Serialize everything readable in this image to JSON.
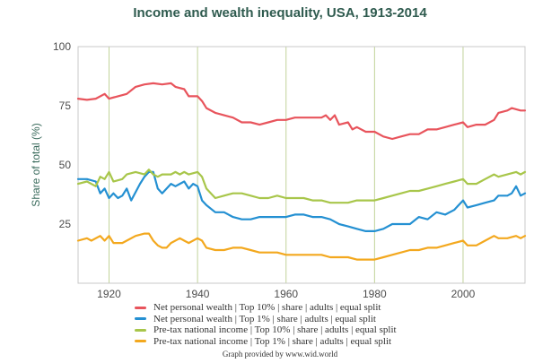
{
  "chart_data": {
    "type": "line",
    "title": "Income and wealth inequality, USA, 1913-2014",
    "xlabel": "",
    "ylabel": "Share of total (%)",
    "xlim": [
      1913,
      2014
    ],
    "ylim": [
      0,
      100
    ],
    "yticks": [
      25,
      50,
      75,
      100
    ],
    "xticks": [
      1920,
      1940,
      1960,
      1980,
      2000
    ],
    "grid": "vertical",
    "legend": "bottom",
    "series": [
      {
        "name": "Net personal wealth | Top 10% | share | adults | equal split",
        "color": "#e8545c",
        "points": [
          [
            1913,
            78
          ],
          [
            1915,
            77.5
          ],
          [
            1917,
            78
          ],
          [
            1919,
            80
          ],
          [
            1920,
            78
          ],
          [
            1922,
            79
          ],
          [
            1924,
            80
          ],
          [
            1926,
            83
          ],
          [
            1928,
            84
          ],
          [
            1930,
            84.5
          ],
          [
            1932,
            84
          ],
          [
            1934,
            84.5
          ],
          [
            1935,
            83
          ],
          [
            1937,
            82
          ],
          [
            1938,
            79
          ],
          [
            1940,
            79
          ],
          [
            1941,
            77
          ],
          [
            1942,
            74
          ],
          [
            1944,
            72
          ],
          [
            1946,
            71
          ],
          [
            1948,
            70
          ],
          [
            1950,
            68
          ],
          [
            1952,
            68
          ],
          [
            1954,
            67
          ],
          [
            1956,
            68
          ],
          [
            1958,
            69
          ],
          [
            1960,
            69
          ],
          [
            1962,
            70
          ],
          [
            1964,
            70
          ],
          [
            1966,
            70
          ],
          [
            1968,
            70
          ],
          [
            1969,
            71
          ],
          [
            1970,
            69
          ],
          [
            1971,
            71
          ],
          [
            1972,
            67
          ],
          [
            1974,
            68
          ],
          [
            1975,
            65
          ],
          [
            1976,
            66
          ],
          [
            1978,
            64
          ],
          [
            1980,
            64
          ],
          [
            1982,
            62
          ],
          [
            1984,
            61
          ],
          [
            1986,
            62
          ],
          [
            1988,
            63
          ],
          [
            1990,
            63
          ],
          [
            1992,
            65
          ],
          [
            1994,
            65
          ],
          [
            1996,
            66
          ],
          [
            1998,
            67
          ],
          [
            2000,
            68
          ],
          [
            2001,
            66
          ],
          [
            2003,
            67
          ],
          [
            2005,
            67
          ],
          [
            2007,
            69
          ],
          [
            2008,
            72
          ],
          [
            2010,
            73
          ],
          [
            2011,
            74
          ],
          [
            2013,
            73
          ],
          [
            2014,
            73
          ]
        ]
      },
      {
        "name": "Net personal wealth | Top 1% | share | adults | equal split",
        "color": "#2490d2",
        "points": [
          [
            1913,
            44
          ],
          [
            1915,
            44
          ],
          [
            1917,
            43
          ],
          [
            1918,
            38
          ],
          [
            1919,
            40
          ],
          [
            1920,
            36
          ],
          [
            1921,
            38
          ],
          [
            1922,
            36
          ],
          [
            1923,
            37
          ],
          [
            1924,
            40
          ],
          [
            1925,
            35
          ],
          [
            1927,
            42
          ],
          [
            1928,
            45
          ],
          [
            1929,
            47
          ],
          [
            1930,
            47
          ],
          [
            1931,
            40
          ],
          [
            1932,
            38
          ],
          [
            1934,
            42
          ],
          [
            1935,
            41
          ],
          [
            1936,
            42
          ],
          [
            1937,
            43
          ],
          [
            1938,
            40
          ],
          [
            1939,
            42
          ],
          [
            1940,
            41
          ],
          [
            1941,
            35
          ],
          [
            1942,
            33
          ],
          [
            1944,
            30
          ],
          [
            1946,
            30
          ],
          [
            1948,
            28
          ],
          [
            1950,
            27
          ],
          [
            1952,
            27
          ],
          [
            1954,
            28
          ],
          [
            1956,
            28
          ],
          [
            1958,
            28
          ],
          [
            1960,
            28
          ],
          [
            1962,
            29
          ],
          [
            1964,
            29
          ],
          [
            1966,
            28
          ],
          [
            1968,
            28
          ],
          [
            1970,
            27
          ],
          [
            1972,
            25
          ],
          [
            1974,
            24
          ],
          [
            1976,
            23
          ],
          [
            1978,
            22
          ],
          [
            1980,
            22
          ],
          [
            1982,
            23
          ],
          [
            1984,
            25
          ],
          [
            1986,
            25
          ],
          [
            1988,
            25
          ],
          [
            1990,
            28
          ],
          [
            1992,
            27
          ],
          [
            1994,
            30
          ],
          [
            1996,
            29
          ],
          [
            1998,
            31
          ],
          [
            2000,
            35
          ],
          [
            2001,
            32
          ],
          [
            2003,
            33
          ],
          [
            2005,
            34
          ],
          [
            2007,
            35
          ],
          [
            2008,
            37
          ],
          [
            2010,
            37
          ],
          [
            2011,
            38
          ],
          [
            2012,
            41
          ],
          [
            2013,
            37
          ],
          [
            2014,
            38
          ]
        ]
      },
      {
        "name": "Pre-tax national income | Top 10% | share | adults | equal split",
        "color": "#a8c64a",
        "points": [
          [
            1913,
            42
          ],
          [
            1915,
            43
          ],
          [
            1917,
            41
          ],
          [
            1918,
            45
          ],
          [
            1919,
            44
          ],
          [
            1920,
            47
          ],
          [
            1921,
            43
          ],
          [
            1923,
            44
          ],
          [
            1924,
            46
          ],
          [
            1926,
            47
          ],
          [
            1928,
            46
          ],
          [
            1929,
            48
          ],
          [
            1930,
            46
          ],
          [
            1931,
            45
          ],
          [
            1932,
            46
          ],
          [
            1934,
            46
          ],
          [
            1935,
            47
          ],
          [
            1936,
            46
          ],
          [
            1937,
            47
          ],
          [
            1938,
            46
          ],
          [
            1940,
            47
          ],
          [
            1941,
            45
          ],
          [
            1942,
            40
          ],
          [
            1944,
            36
          ],
          [
            1946,
            37
          ],
          [
            1948,
            38
          ],
          [
            1950,
            38
          ],
          [
            1952,
            37
          ],
          [
            1954,
            36
          ],
          [
            1956,
            36
          ],
          [
            1958,
            37
          ],
          [
            1960,
            36
          ],
          [
            1962,
            36
          ],
          [
            1964,
            36
          ],
          [
            1966,
            35
          ],
          [
            1968,
            35
          ],
          [
            1970,
            34
          ],
          [
            1972,
            34
          ],
          [
            1974,
            34
          ],
          [
            1976,
            35
          ],
          [
            1978,
            35
          ],
          [
            1980,
            35
          ],
          [
            1982,
            36
          ],
          [
            1984,
            37
          ],
          [
            1986,
            38
          ],
          [
            1988,
            39
          ],
          [
            1990,
            39
          ],
          [
            1992,
            40
          ],
          [
            1994,
            41
          ],
          [
            1996,
            42
          ],
          [
            1998,
            43
          ],
          [
            2000,
            44
          ],
          [
            2001,
            42
          ],
          [
            2003,
            42
          ],
          [
            2005,
            44
          ],
          [
            2007,
            46
          ],
          [
            2008,
            45
          ],
          [
            2010,
            46
          ],
          [
            2012,
            47
          ],
          [
            2013,
            46
          ],
          [
            2014,
            47
          ]
        ]
      },
      {
        "name": "Pre-tax national income | Top 1% | share | adults | equal split",
        "color": "#f3a81e",
        "points": [
          [
            1913,
            18
          ],
          [
            1915,
            19
          ],
          [
            1916,
            18
          ],
          [
            1918,
            20
          ],
          [
            1919,
            18
          ],
          [
            1920,
            20
          ],
          [
            1921,
            17
          ],
          [
            1923,
            17
          ],
          [
            1924,
            18
          ],
          [
            1926,
            20
          ],
          [
            1928,
            21
          ],
          [
            1929,
            21
          ],
          [
            1930,
            18
          ],
          [
            1931,
            16
          ],
          [
            1932,
            15
          ],
          [
            1933,
            15
          ],
          [
            1934,
            17
          ],
          [
            1936,
            19
          ],
          [
            1937,
            18
          ],
          [
            1938,
            17
          ],
          [
            1940,
            19
          ],
          [
            1941,
            18
          ],
          [
            1942,
            15
          ],
          [
            1944,
            14
          ],
          [
            1946,
            14
          ],
          [
            1948,
            15
          ],
          [
            1950,
            15
          ],
          [
            1952,
            14
          ],
          [
            1954,
            13
          ],
          [
            1956,
            13
          ],
          [
            1958,
            13
          ],
          [
            1960,
            12
          ],
          [
            1962,
            12
          ],
          [
            1964,
            12
          ],
          [
            1966,
            12
          ],
          [
            1968,
            12
          ],
          [
            1970,
            11
          ],
          [
            1972,
            11
          ],
          [
            1974,
            11
          ],
          [
            1976,
            10
          ],
          [
            1978,
            10
          ],
          [
            1980,
            10
          ],
          [
            1982,
            11
          ],
          [
            1984,
            12
          ],
          [
            1986,
            13
          ],
          [
            1988,
            14
          ],
          [
            1990,
            14
          ],
          [
            1992,
            15
          ],
          [
            1994,
            15
          ],
          [
            1996,
            16
          ],
          [
            1998,
            17
          ],
          [
            2000,
            18
          ],
          [
            2001,
            16
          ],
          [
            2003,
            16
          ],
          [
            2005,
            18
          ],
          [
            2007,
            20
          ],
          [
            2008,
            19
          ],
          [
            2010,
            19
          ],
          [
            2012,
            20
          ],
          [
            2013,
            19
          ],
          [
            2014,
            20
          ]
        ]
      }
    ]
  },
  "footer": {
    "credit": "Graph provided by www.wid.world"
  }
}
